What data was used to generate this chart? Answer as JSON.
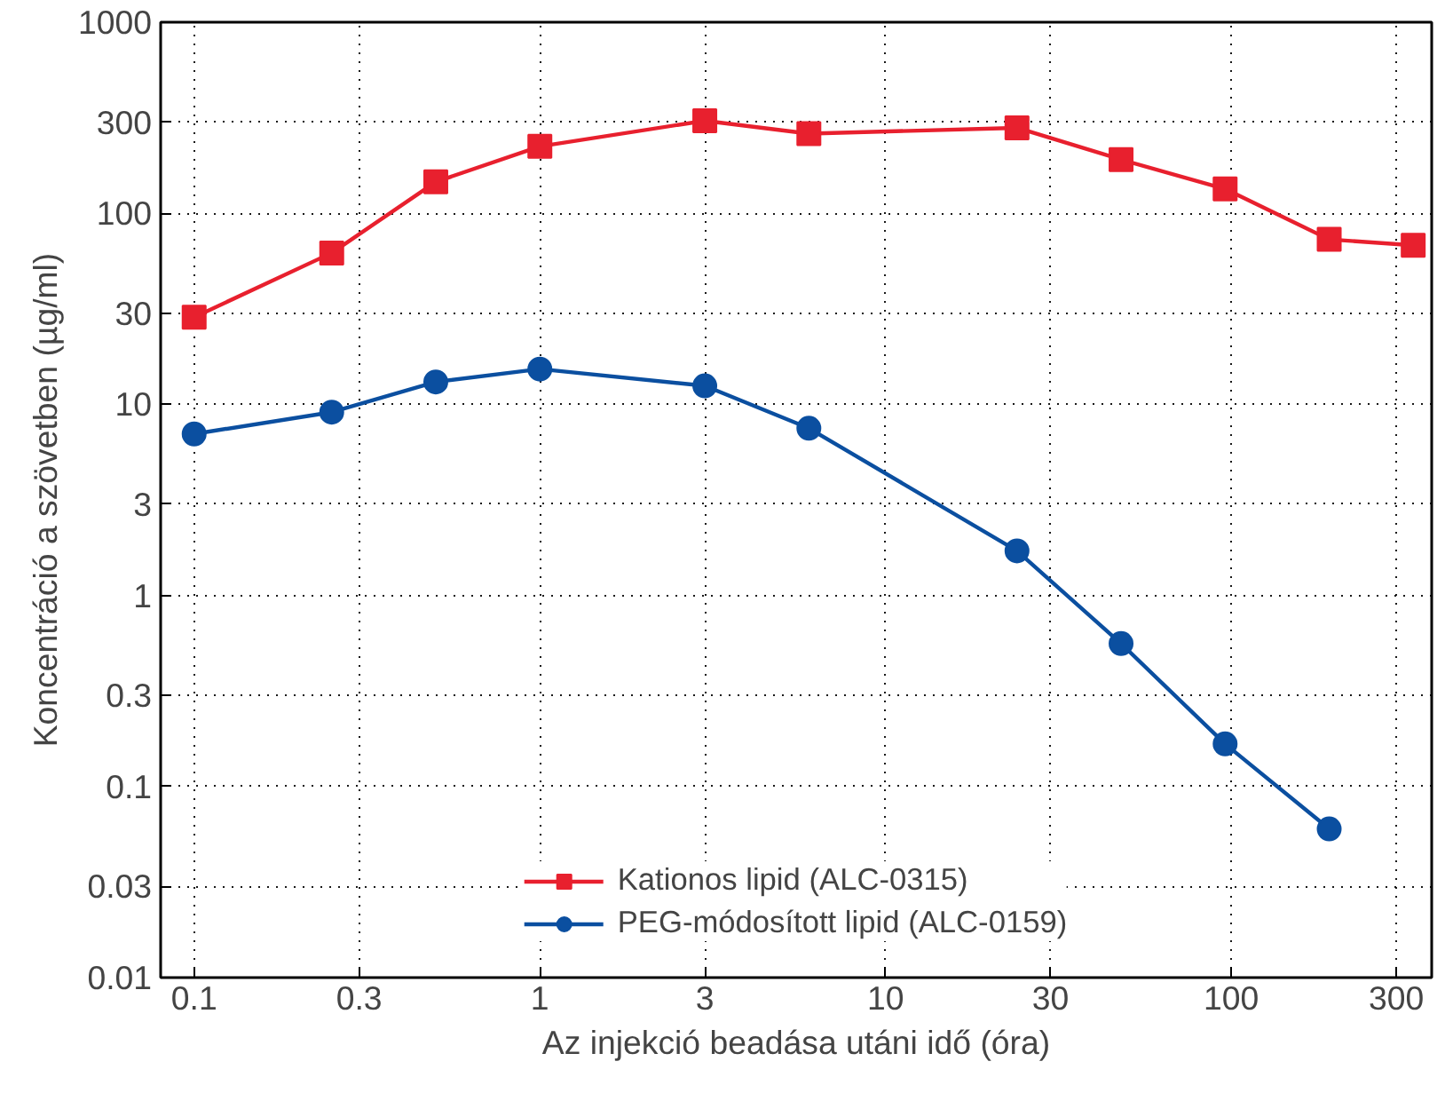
{
  "chart_data": {
    "type": "line",
    "xlabel": "Az injekció beadása utáni idő (óra)",
    "ylabel": "Koncentráció a szövetben (µg/ml)",
    "log": "xy",
    "grid": true,
    "legend": "bottom",
    "line_style": "solid",
    "xlim": [
      0.08,
      380
    ],
    "ylim": [
      0.01,
      1000
    ],
    "xticks": [
      0.1,
      0.3,
      1,
      3,
      10,
      30,
      100,
      300
    ],
    "yticks": [
      0.01,
      0.03,
      0.1,
      0.3,
      1,
      3,
      10,
      30,
      100,
      300,
      1000
    ],
    "series": [
      {
        "name": "Kationos lipid (ALC-0315)",
        "color": "#e8202e",
        "marker": "square",
        "x": [
          0.1,
          0.25,
          0.5,
          1,
          3,
          6,
          24,
          48,
          96,
          192,
          336
        ],
        "values": [
          28.6,
          62,
          146,
          224,
          305,
          261,
          280,
          191,
          134,
          73,
          68
        ]
      },
      {
        "name": "PEG-módosított lipid (ALC-0159)",
        "color": "#0b4fa0",
        "marker": "circle",
        "x": [
          0.1,
          0.25,
          0.5,
          1,
          3,
          6,
          24,
          48,
          96,
          192
        ],
        "values": [
          7.0,
          9.1,
          13.1,
          15.3,
          12.5,
          7.5,
          1.71,
          0.56,
          0.167,
          0.06
        ]
      }
    ]
  }
}
